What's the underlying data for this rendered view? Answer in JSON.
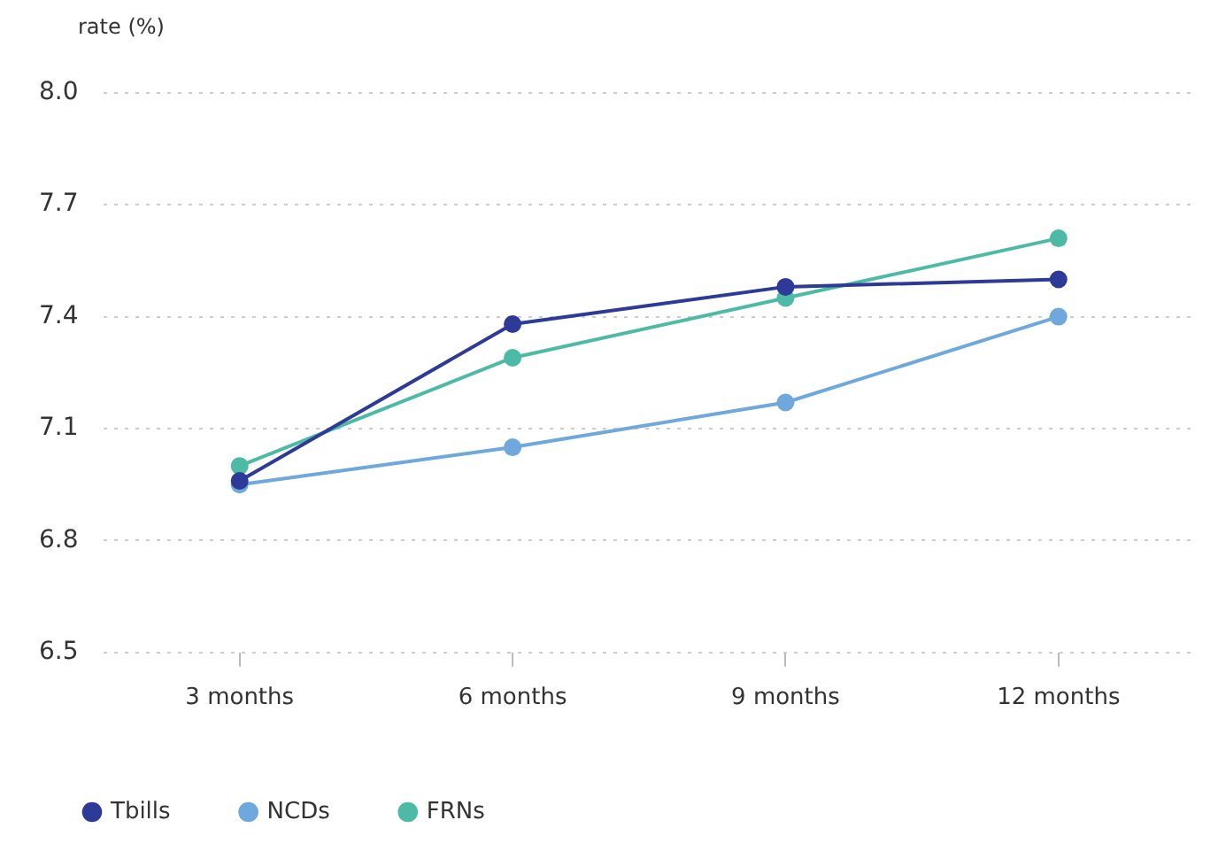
{
  "chart_data": {
    "type": "line",
    "ylabel": "rate (%)",
    "categories": [
      "3 months",
      "6 months",
      "9 months",
      "12 months"
    ],
    "series": [
      {
        "name": "Tbills",
        "color": "#2e3a97",
        "values": [
          6.96,
          7.38,
          7.48,
          7.5
        ]
      },
      {
        "name": "NCDs",
        "color": "#6fa8dc",
        "values": [
          6.95,
          7.05,
          7.17,
          7.4
        ]
      },
      {
        "name": "FRNs",
        "color": "#4dbaa5",
        "values": [
          7.0,
          7.29,
          7.45,
          7.61
        ]
      }
    ],
    "ylim": [
      6.5,
      8.0
    ],
    "yticks": [
      {
        "value": 6.5,
        "label": "6.5"
      },
      {
        "value": 6.8,
        "label": "6.8"
      },
      {
        "value": 7.1,
        "label": "7.1"
      },
      {
        "value": 7.4,
        "label": "7.4"
      },
      {
        "value": 7.7,
        "label": "7.7"
      },
      {
        "value": 8,
        "label": "8.0"
      }
    ],
    "grid": "y",
    "legend": "bottom left",
    "marker": "circle",
    "line_style": "solid"
  }
}
